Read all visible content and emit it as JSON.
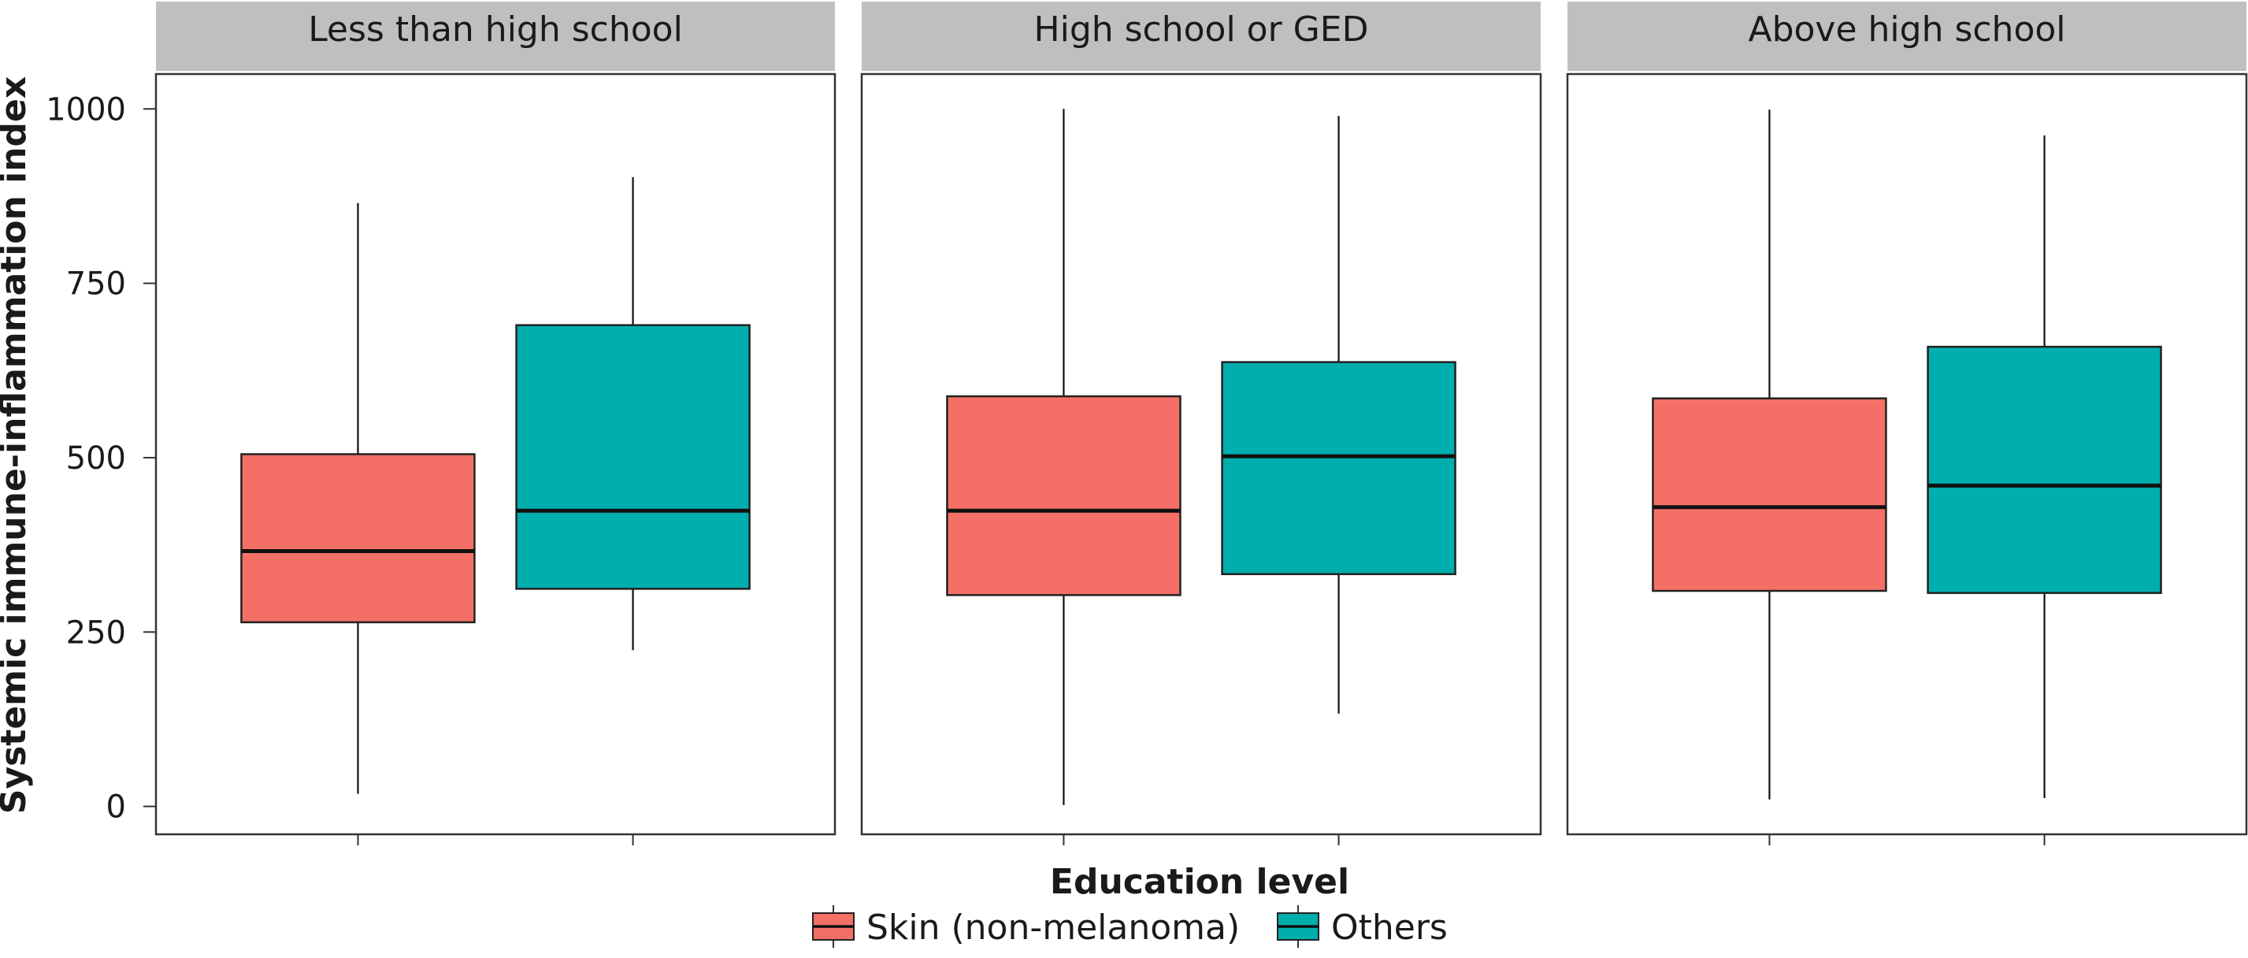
{
  "chart_data": {
    "type": "boxplot",
    "ylabel": "Systemic immune-inflammation index",
    "xlabel": "Education level",
    "ylim": [
      -40,
      1050
    ],
    "yticks": [
      0,
      250,
      500,
      750,
      1000
    ],
    "facets": [
      "Less than high school",
      "High school or GED",
      "Above high school"
    ],
    "series": [
      {
        "name": "Skin (non-melanoma)",
        "color": "#f47066",
        "boxes": [
          {
            "facet": "Less than high school",
            "min": 18,
            "q1": 264,
            "median": 366,
            "q3": 505,
            "max": 865
          },
          {
            "facet": "High school or GED",
            "min": 2,
            "q1": 303,
            "median": 424,
            "q3": 588,
            "max": 1000
          },
          {
            "facet": "Above high school",
            "min": 10,
            "q1": 309,
            "median": 429,
            "q3": 585,
            "max": 999
          }
        ]
      },
      {
        "name": "Others",
        "color": "#00aead",
        "boxes": [
          {
            "facet": "Less than high school",
            "min": 224,
            "q1": 312,
            "median": 424,
            "q3": 690,
            "max": 902
          },
          {
            "facet": "High school or GED",
            "min": 133,
            "q1": 333,
            "median": 502,
            "q3": 637,
            "max": 990
          },
          {
            "facet": "Above high school",
            "min": 12,
            "q1": 306,
            "median": 460,
            "q3": 659,
            "max": 962
          }
        ]
      }
    ],
    "legend": {
      "position": "bottom"
    },
    "grid": false
  }
}
